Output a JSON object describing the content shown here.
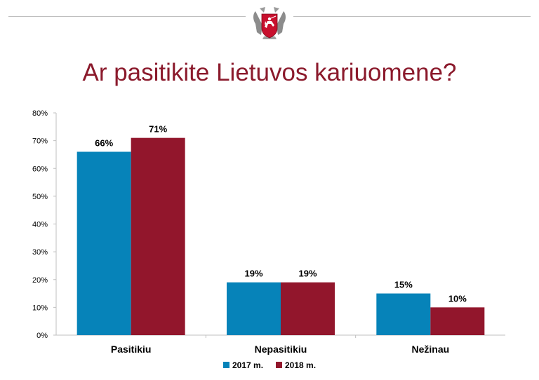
{
  "header": {
    "emblem_icon": "coat-of-arms-vytis-icon"
  },
  "chart_data": {
    "type": "bar",
    "title": "Ar pasitikite Lietuvos kariuomene?",
    "categories": [
      "Pasitikiu",
      "Nepasitikiu",
      "Nežinau"
    ],
    "series": [
      {
        "name": "2017 m.",
        "values": [
          66,
          19,
          15
        ],
        "labels": [
          "66%",
          "19%",
          "15%"
        ],
        "color": "#0683b9"
      },
      {
        "name": "2018 m.",
        "values": [
          71,
          19,
          10
        ],
        "labels": [
          "71%",
          "19%",
          "10%"
        ],
        "color": "#92162c"
      }
    ],
    "ylim": [
      0,
      80
    ],
    "yticks": [
      0,
      10,
      20,
      30,
      40,
      50,
      60,
      70,
      80
    ],
    "ytick_labels": [
      "0%",
      "10%",
      "20%",
      "30%",
      "40%",
      "50%",
      "60%",
      "70%",
      "80%"
    ],
    "xlabel": "",
    "ylabel": "",
    "grid": false,
    "legend_position": "bottom"
  }
}
